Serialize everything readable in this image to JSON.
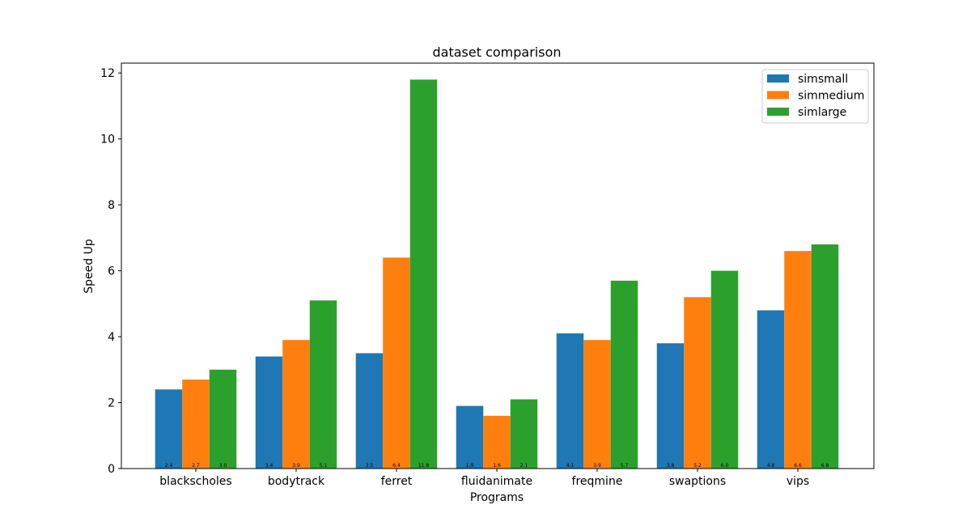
{
  "chart_data": {
    "type": "bar",
    "title": "dataset comparison",
    "xlabel": "Programs",
    "ylabel": "Speed Up",
    "ylim": [
      0,
      12.3
    ],
    "yticks": [
      0,
      2,
      4,
      6,
      8,
      10,
      12
    ],
    "categories": [
      "blackscholes",
      "bodytrack",
      "ferret",
      "fluidanimate",
      "freqmine",
      "swaptions",
      "vips"
    ],
    "series": [
      {
        "name": "simsmall",
        "color": "#1f77b4",
        "values": [
          2.4,
          3.4,
          3.5,
          1.9,
          4.1,
          3.8,
          4.8
        ],
        "labels": [
          "2.4",
          "3.4",
          "3.5",
          "1.9",
          "4.1",
          "3.8",
          "4.8"
        ]
      },
      {
        "name": "simmedium",
        "color": "#ff7f0e",
        "values": [
          2.7,
          3.9,
          6.4,
          1.6,
          3.9,
          5.2,
          6.6
        ],
        "labels": [
          "2.7",
          "3.9",
          "6.4",
          "1.6",
          "3.9",
          "5.2",
          "6.6"
        ]
      },
      {
        "name": "simlarge",
        "color": "#2ca02c",
        "values": [
          3.0,
          5.1,
          11.8,
          2.1,
          5.7,
          6.0,
          6.8
        ],
        "labels": [
          "3.0",
          "5.1",
          "11.8",
          "2.1",
          "5.7",
          "6.0",
          "6.8"
        ]
      }
    ],
    "legend": "top-right",
    "grid": false
  }
}
